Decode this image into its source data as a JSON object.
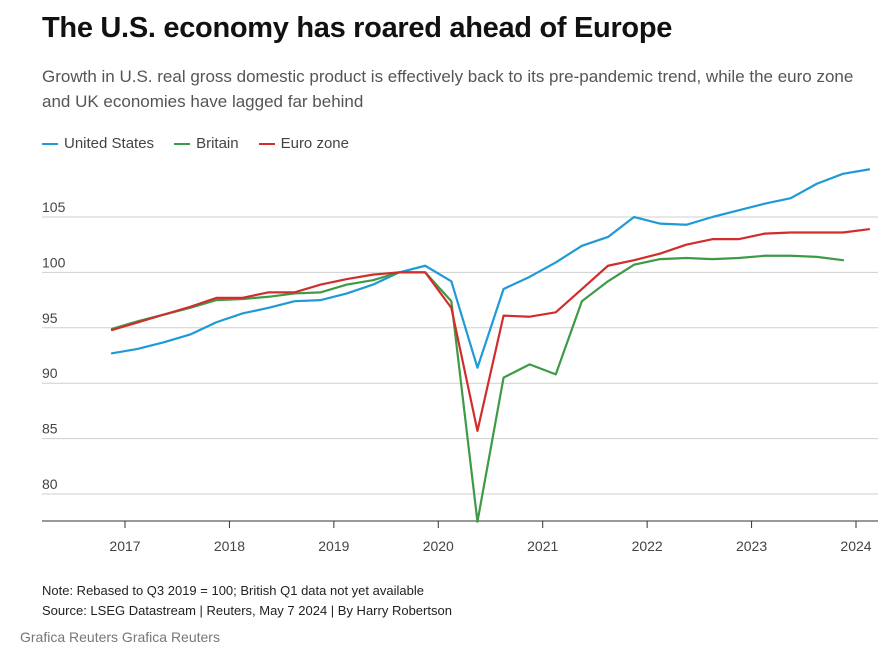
{
  "header": {
    "title": "The U.S. economy has roared ahead of Europe",
    "subtitle": "Growth in U.S. real gross domestic product is effectively back to its pre-pandemic trend, while the euro zone and UK economies have lagged far behind"
  },
  "footer": {
    "note": "Note: Rebased to Q3 2019 = 100; British Q1 data not yet available",
    "source": "Source: LSEG Datastream | Reuters, May 7 2024 | By Harry Robertson",
    "credit": "Grafica Reuters Grafica Reuters"
  },
  "chart_data": {
    "type": "line",
    "title": "The U.S. economy has roared ahead of Europe",
    "xlabel": "",
    "ylabel": "",
    "ylim": [
      77,
      110
    ],
    "xlim": [
      2016.4,
      2024.2
    ],
    "y_ticks": [
      80,
      85,
      90,
      95,
      100,
      105
    ],
    "y_tick_labels": [
      "80",
      "85",
      "90",
      "95",
      "100",
      "105"
    ],
    "x_ticks": [
      2017,
      2018,
      2019,
      2020,
      2021,
      2022,
      2023,
      2024
    ],
    "x_tick_labels": [
      "2017",
      "2018",
      "2019",
      "2020",
      "2021",
      "2022",
      "2023",
      "2024"
    ],
    "grid": "horizontal",
    "legend_position": "top-left",
    "x": [
      2016.875,
      2017.125,
      2017.375,
      2017.625,
      2017.875,
      2018.125,
      2018.375,
      2018.625,
      2018.875,
      2019.125,
      2019.375,
      2019.625,
      2019.875,
      2020.125,
      2020.375,
      2020.625,
      2020.875,
      2021.125,
      2021.375,
      2021.625,
      2021.875,
      2022.125,
      2022.375,
      2022.625,
      2022.875,
      2023.125,
      2023.375,
      2023.625,
      2023.875,
      2024.125
    ],
    "series": [
      {
        "name": "United States",
        "color": "#1f9ad6",
        "values": [
          92.7,
          93.1,
          93.7,
          94.4,
          95.5,
          96.3,
          96.8,
          97.4,
          97.5,
          98.1,
          98.9,
          100.0,
          100.6,
          99.2,
          91.4,
          98.5,
          99.6,
          100.9,
          102.4,
          103.2,
          105.0,
          104.4,
          104.3,
          105.0,
          105.6,
          106.2,
          106.7,
          108.0,
          108.9,
          109.3
        ]
      },
      {
        "name": "Britain",
        "color": "#3d9a45",
        "values": [
          94.9,
          95.6,
          96.2,
          96.8,
          97.5,
          97.6,
          97.8,
          98.1,
          98.2,
          98.9,
          99.3,
          100.0,
          100.0,
          97.4,
          77.5,
          90.5,
          91.7,
          90.8,
          97.4,
          99.2,
          100.7,
          101.2,
          101.3,
          101.2,
          101.3,
          101.5,
          101.5,
          101.4,
          101.1,
          null
        ]
      },
      {
        "name": "Euro zone",
        "color": "#d12d2d",
        "values": [
          94.8,
          95.5,
          96.2,
          96.9,
          97.7,
          97.7,
          98.2,
          98.2,
          98.9,
          99.4,
          99.8,
          100.0,
          100.0,
          96.8,
          85.7,
          96.1,
          96.0,
          96.4,
          98.5,
          100.6,
          101.1,
          101.7,
          102.5,
          103.0,
          103.0,
          103.5,
          103.6,
          103.6,
          103.6,
          103.9
        ]
      }
    ]
  }
}
